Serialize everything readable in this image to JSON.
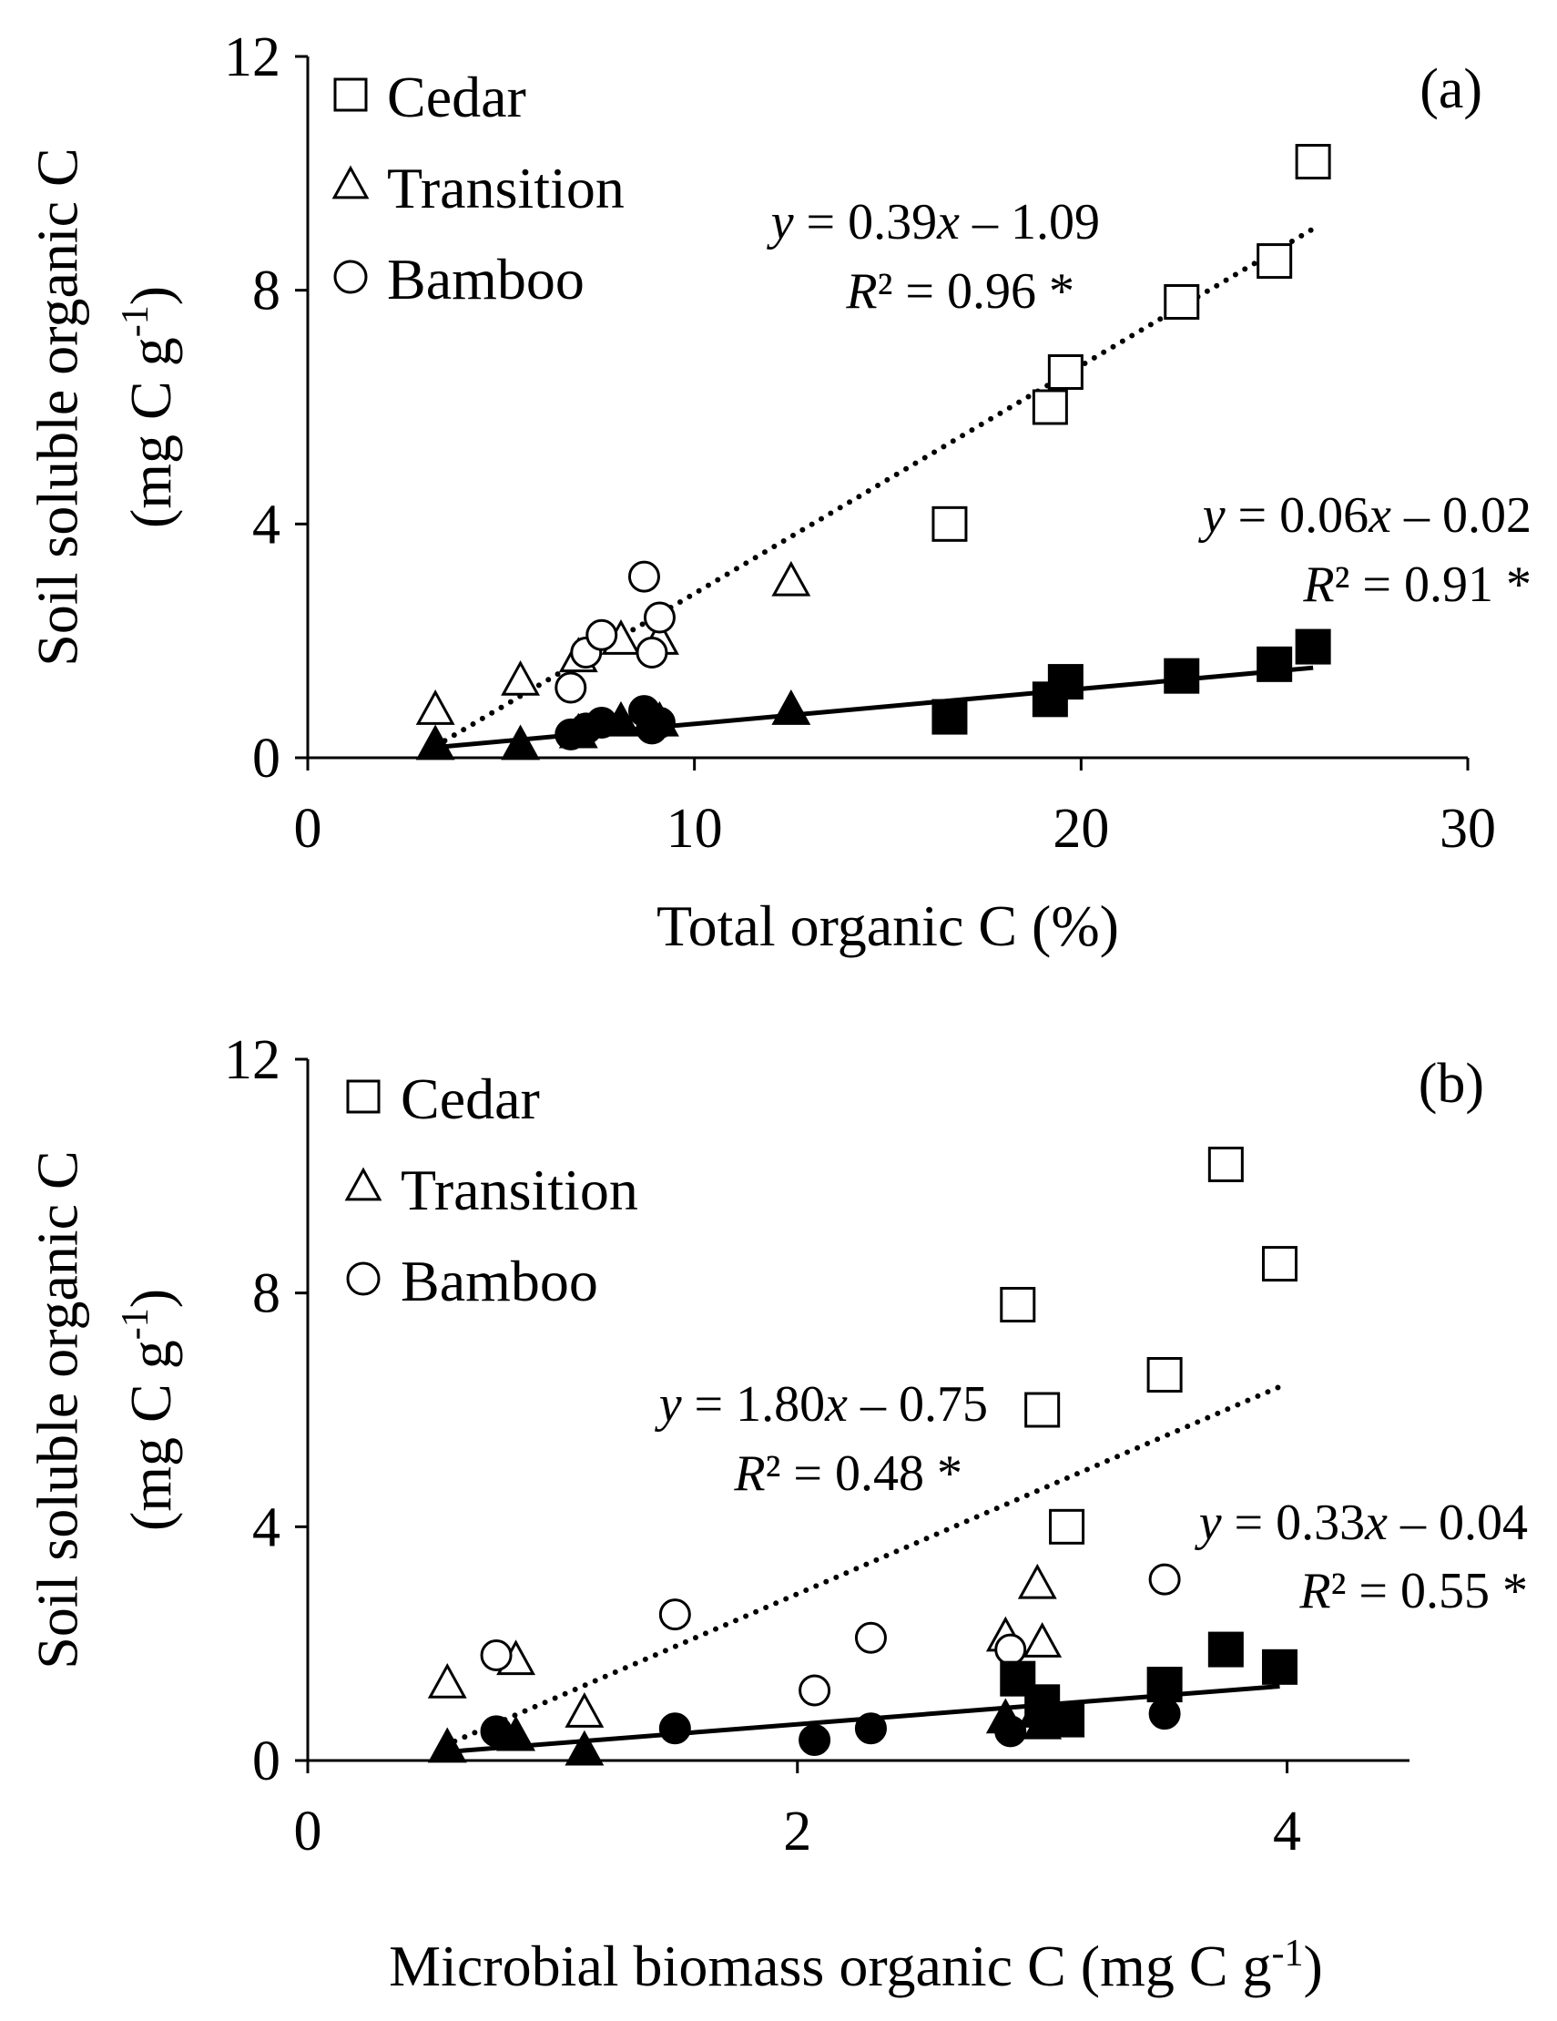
{
  "chart_data": [
    {
      "type": "scatter",
      "panel_label": "(a)",
      "xlabel": "Total organic C (%)",
      "ylabel_line1": "Soil soluble organic C",
      "ylabel_line2_main": "(mg C g",
      "ylabel_line2_sup": "-1",
      "ylabel_line2_end": ")",
      "xlim": [
        0,
        30
      ],
      "ylim": [
        0,
        12
      ],
      "xticks": [
        0,
        10,
        20,
        30
      ],
      "yticks": [
        0,
        4,
        8,
        12
      ],
      "legend": {
        "position": "top-left",
        "entries": [
          {
            "label": "Cedar",
            "marker": "square"
          },
          {
            "label": "Transition",
            "marker": "triangle"
          },
          {
            "label": "Bamboo",
            "marker": "circle"
          }
        ]
      },
      "series": [
        {
          "name": "Cedar",
          "marker": "square",
          "fill": "open",
          "points": [
            [
              16.6,
              4.0
            ],
            [
              19.2,
              6.0
            ],
            [
              19.6,
              6.6
            ],
            [
              22.6,
              7.8
            ],
            [
              25.0,
              8.5
            ],
            [
              26.0,
              10.2
            ]
          ]
        },
        {
          "name": "Transition",
          "marker": "triangle",
          "fill": "open",
          "points": [
            [
              3.3,
              0.8
            ],
            [
              5.5,
              1.3
            ],
            [
              7.0,
              1.7
            ],
            [
              8.1,
              2.0
            ],
            [
              9.1,
              2.0
            ],
            [
              12.5,
              3.0
            ]
          ]
        },
        {
          "name": "Bamboo",
          "marker": "circle",
          "fill": "open",
          "points": [
            [
              6.8,
              1.2
            ],
            [
              7.2,
              1.8
            ],
            [
              7.6,
              2.1
            ],
            [
              8.7,
              3.1
            ],
            [
              8.9,
              1.8
            ],
            [
              9.1,
              2.4
            ]
          ]
        },
        {
          "name": "Cedar",
          "marker": "square",
          "fill": "filled",
          "points": [
            [
              16.6,
              0.7
            ],
            [
              19.2,
              1.0
            ],
            [
              19.6,
              1.3
            ],
            [
              22.6,
              1.4
            ],
            [
              25.0,
              1.6
            ],
            [
              26.0,
              1.9
            ]
          ]
        },
        {
          "name": "Transition",
          "marker": "triangle",
          "fill": "filled",
          "points": [
            [
              3.3,
              0.2
            ],
            [
              5.5,
              0.2
            ],
            [
              7.0,
              0.4
            ],
            [
              8.1,
              0.6
            ],
            [
              9.1,
              0.6
            ],
            [
              12.5,
              0.8
            ]
          ]
        },
        {
          "name": "Bamboo",
          "marker": "circle",
          "fill": "filled",
          "points": [
            [
              6.8,
              0.4
            ],
            [
              7.2,
              0.5
            ],
            [
              7.6,
              0.6
            ],
            [
              8.7,
              0.8
            ],
            [
              8.9,
              0.5
            ],
            [
              9.1,
              0.6
            ]
          ]
        }
      ],
      "fits": [
        {
          "style": "dotted",
          "slope": 0.39,
          "intercept": -1.09,
          "x_range": [
            3.3,
            26.0
          ],
          "eq_y": "y",
          "eq_mid": " = 0.39",
          "eq_x": "x",
          "eq_end": " – 1.09",
          "r2_r": "R",
          "r2_rest": "² = 0.96 *"
        },
        {
          "style": "solid",
          "slope": 0.06,
          "intercept": -0.02,
          "x_range": [
            3.3,
            26.0
          ],
          "eq_y": "y",
          "eq_mid": " = 0.06",
          "eq_x": "x",
          "eq_end": " – 0.02",
          "r2_r": "R",
          "r2_rest": "² = 0.91 *"
        }
      ]
    },
    {
      "type": "scatter",
      "panel_label": "(b)",
      "xlabel_main": "Microbial biomass organic C (mg C g",
      "xlabel_sup": "-1",
      "xlabel_end": ")",
      "ylabel_line1": "Soil soluble organic C",
      "ylabel_line2_main": "(mg C g",
      "ylabel_line2_sup": "-1",
      "ylabel_line2_end": ")",
      "xlim": [
        0,
        4.5
      ],
      "ylim": [
        0,
        12
      ],
      "xticks": [
        0,
        2,
        4
      ],
      "yticks": [
        0,
        4,
        8,
        12
      ],
      "legend": {
        "position": "top-left",
        "entries": [
          {
            "label": "Cedar",
            "marker": "square"
          },
          {
            "label": "Transition",
            "marker": "triangle"
          },
          {
            "label": "Bamboo",
            "marker": "circle"
          }
        ]
      },
      "series": [
        {
          "name": "Cedar",
          "marker": "square",
          "fill": "open",
          "points": [
            [
              2.9,
              7.8
            ],
            [
              3.0,
              6.0
            ],
            [
              3.1,
              4.0
            ],
            [
              3.5,
              6.6
            ],
            [
              3.75,
              10.2
            ],
            [
              3.97,
              8.5
            ]
          ]
        },
        {
          "name": "Transition",
          "marker": "triangle",
          "fill": "open",
          "points": [
            [
              0.57,
              1.3
            ],
            [
              0.85,
              1.7
            ],
            [
              1.13,
              0.8
            ],
            [
              2.85,
              2.1
            ],
            [
              3.0,
              2.0
            ],
            [
              2.98,
              3.0
            ]
          ]
        },
        {
          "name": "Bamboo",
          "marker": "circle",
          "fill": "open",
          "points": [
            [
              0.77,
              1.8
            ],
            [
              1.5,
              2.5
            ],
            [
              2.07,
              1.2
            ],
            [
              2.3,
              2.1
            ],
            [
              2.87,
              1.9
            ],
            [
              3.5,
              3.1
            ]
          ]
        },
        {
          "name": "Cedar",
          "marker": "square",
          "fill": "filled",
          "points": [
            [
              2.9,
              1.4
            ],
            [
              3.0,
              1.0
            ],
            [
              3.1,
              0.7
            ],
            [
              3.5,
              1.3
            ],
            [
              3.75,
              1.9
            ],
            [
              3.97,
              1.6
            ]
          ]
        },
        {
          "name": "Transition",
          "marker": "triangle",
          "fill": "filled",
          "points": [
            [
              0.57,
              0.2
            ],
            [
              0.85,
              0.4
            ],
            [
              1.13,
              0.15
            ],
            [
              2.85,
              0.7
            ],
            [
              3.0,
              0.6
            ],
            [
              2.98,
              0.8
            ]
          ]
        },
        {
          "name": "Bamboo",
          "marker": "circle",
          "fill": "filled",
          "points": [
            [
              0.77,
              0.5
            ],
            [
              1.5,
              0.55
            ],
            [
              2.07,
              0.35
            ],
            [
              2.3,
              0.55
            ],
            [
              2.87,
              0.5
            ],
            [
              3.5,
              0.8
            ]
          ]
        }
      ],
      "fits": [
        {
          "style": "dotted",
          "slope": 1.8,
          "intercept": -0.75,
          "x_range": [
            0.6,
            3.97
          ],
          "eq_y": "y",
          "eq_mid": " = 1.80",
          "eq_x": "x",
          "eq_end": " – 0.75",
          "r2_r": "R",
          "r2_rest": "² = 0.48 *"
        },
        {
          "style": "solid",
          "slope": 0.33,
          "intercept": -0.04,
          "x_range": [
            0.6,
            3.97
          ],
          "eq_y": "y",
          "eq_mid": " = 0.33",
          "eq_x": "x",
          "eq_end": " – 0.04",
          "r2_r": "R",
          "r2_rest": "² = 0.55 *"
        }
      ]
    }
  ]
}
